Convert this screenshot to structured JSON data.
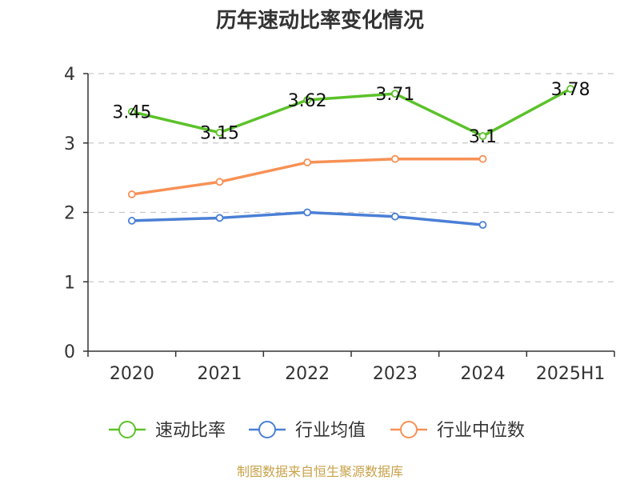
{
  "chart_data": {
    "type": "line",
    "title": "历年速动比率变化情况",
    "categories": [
      "2020",
      "2021",
      "2022",
      "2023",
      "2024",
      "2025H1"
    ],
    "ylim": [
      0,
      4
    ],
    "yticks": [
      "0",
      "1",
      "2",
      "3",
      "4"
    ],
    "grid": true,
    "legend_position": "bottom",
    "series": [
      {
        "name": "速动比率",
        "color": "#5cc22a",
        "values": [
          3.45,
          3.15,
          3.62,
          3.71,
          3.1,
          3.78
        ],
        "labels": [
          "3.45",
          "3.15",
          "3.62",
          "3.71",
          "3.1",
          "3.78"
        ]
      },
      {
        "name": "行业均值",
        "color": "#4a7fd6",
        "values": [
          1.88,
          1.92,
          2.0,
          1.94,
          1.82,
          null
        ]
      },
      {
        "name": "行业中位数",
        "color": "#f79155",
        "values": [
          2.26,
          2.44,
          2.72,
          2.77,
          2.77,
          null
        ]
      }
    ],
    "source": "制图数据来自恒生聚源数据库"
  }
}
